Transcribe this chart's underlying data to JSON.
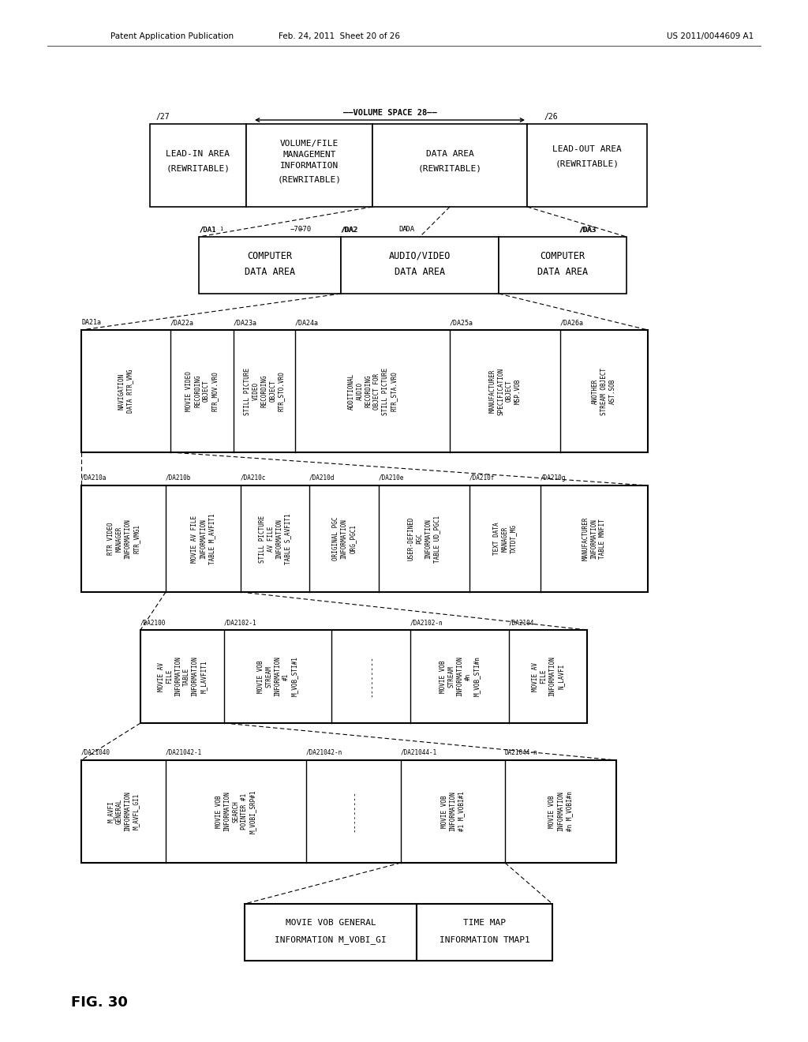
{
  "background_color": "#ffffff",
  "header_left": "Patent Application Publication",
  "header_center": "Feb. 24, 2011  Sheet 20 of 26",
  "header_right": "US 2011/0044609 A1",
  "fig_label": "FIG. 30"
}
